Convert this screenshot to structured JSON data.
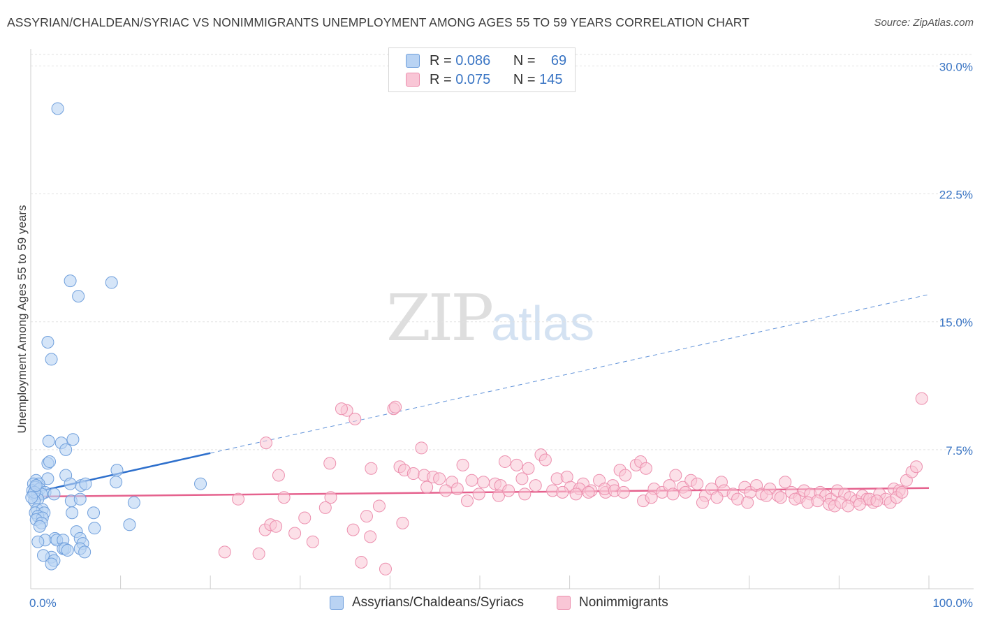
{
  "title": "ASSYRIAN/CHALDEAN/SYRIAC VS NONIMMIGRANTS UNEMPLOYMENT AMONG AGES 55 TO 59 YEARS CORRELATION CHART",
  "source": "Source: ZipAtlas.com",
  "watermark": {
    "zip": "ZIP",
    "atlas": "atlas"
  },
  "legend": {
    "series1": {
      "r_label": "R =",
      "r_value": "0.086",
      "n_label": "N =",
      "n_value": "69"
    },
    "series2": {
      "r_label": "R =",
      "r_value": "0.075",
      "n_label": "N =",
      "n_value": "145"
    }
  },
  "bottom_legend": {
    "series1": "Assyrians/Chaldeans/Syriacs",
    "series2": "Nonimmigrants"
  },
  "colors": {
    "series1_fill": "#b9d3f3",
    "series1_stroke": "#6f9fdc",
    "series1_line": "#2d6fcc",
    "series2_fill": "#f9c6d6",
    "series2_stroke": "#ec8fae",
    "series2_line": "#e5628e",
    "tick_label": "#3a75c4",
    "grid": "#e2e2e2"
  },
  "chart_data": {
    "type": "scatter",
    "ylabel": "Unemployment Among Ages 55 to 59 years",
    "xlabel": "",
    "xlim": [
      0,
      100
    ],
    "ylim": [
      0,
      31
    ],
    "x_tick_labels": [
      {
        "v": 0,
        "label": "0.0%"
      },
      {
        "v": 100,
        "label": "100.0%"
      }
    ],
    "y_ticks": [
      {
        "v": 7.5,
        "label": "7.5%"
      },
      {
        "v": 15,
        "label": "15.0%"
      },
      {
        "v": 22.5,
        "label": "22.5%"
      },
      {
        "v": 30,
        "label": "30.0%"
      }
    ],
    "x_minor_ticks": [
      10,
      20,
      30,
      40,
      50,
      60,
      70,
      80,
      90,
      100
    ],
    "series": [
      {
        "name": "Assyrians/Chaldeans/Syriacs",
        "trend": {
          "x0": 0,
          "y0": 4.95,
          "x1": 20,
          "y1": 7.3,
          "dash_x1": 100,
          "dash_y1": 16.6
        },
        "points": [
          [
            3.0,
            27.5
          ],
          [
            4.4,
            17.4
          ],
          [
            5.3,
            16.5
          ],
          [
            9.0,
            17.3
          ],
          [
            1.9,
            13.8
          ],
          [
            2.3,
            12.8
          ],
          [
            2.0,
            8.0
          ],
          [
            3.4,
            7.9
          ],
          [
            4.7,
            8.1
          ],
          [
            3.9,
            7.5
          ],
          [
            1.9,
            6.7
          ],
          [
            2.1,
            6.8
          ],
          [
            3.9,
            6.0
          ],
          [
            1.9,
            5.8
          ],
          [
            0.6,
            5.7
          ],
          [
            0.9,
            5.5
          ],
          [
            0.3,
            5.5
          ],
          [
            0.5,
            5.3
          ],
          [
            0.2,
            5.1
          ],
          [
            1.0,
            5.2
          ],
          [
            1.6,
            5.0
          ],
          [
            0.3,
            4.9
          ],
          [
            0.7,
            4.8
          ],
          [
            1.2,
            4.9
          ],
          [
            2.6,
            4.9
          ],
          [
            0.8,
            4.6
          ],
          [
            0.4,
            4.5
          ],
          [
            5.6,
            5.4
          ],
          [
            6.1,
            5.5
          ],
          [
            4.4,
            5.5
          ],
          [
            9.5,
            5.6
          ],
          [
            9.6,
            6.3
          ],
          [
            18.9,
            5.5
          ],
          [
            4.5,
            4.5
          ],
          [
            5.5,
            4.6
          ],
          [
            11.5,
            4.4
          ],
          [
            0.7,
            4.0
          ],
          [
            1.3,
            4.0
          ],
          [
            0.5,
            3.8
          ],
          [
            1.5,
            3.8
          ],
          [
            0.8,
            3.6
          ],
          [
            1.3,
            3.5
          ],
          [
            0.6,
            3.4
          ],
          [
            4.6,
            3.8
          ],
          [
            7.0,
            3.8
          ],
          [
            11.0,
            3.1
          ],
          [
            1.2,
            3.2
          ],
          [
            1.0,
            3.0
          ],
          [
            7.1,
            2.9
          ],
          [
            5.1,
            2.7
          ],
          [
            2.7,
            2.3
          ],
          [
            2.9,
            2.2
          ],
          [
            3.6,
            2.2
          ],
          [
            5.5,
            2.3
          ],
          [
            1.6,
            2.2
          ],
          [
            0.8,
            2.1
          ],
          [
            5.8,
            2.0
          ],
          [
            5.5,
            1.7
          ],
          [
            3.6,
            1.7
          ],
          [
            3.8,
            1.7
          ],
          [
            6.0,
            1.5
          ],
          [
            4.1,
            1.6
          ],
          [
            2.3,
            1.2
          ],
          [
            1.4,
            1.3
          ],
          [
            2.6,
            1.0
          ],
          [
            2.3,
            0.8
          ],
          [
            0.4,
            5.0
          ],
          [
            0.1,
            4.7
          ],
          [
            0.6,
            5.4
          ]
        ]
      },
      {
        "name": "Nonimmigrants",
        "trend": {
          "x0": 0,
          "y0": 4.75,
          "x1": 100,
          "y1": 5.25
        },
        "points": [
          [
            35.2,
            9.8
          ],
          [
            40.4,
            9.9
          ],
          [
            36.1,
            9.3
          ],
          [
            26.2,
            7.9
          ],
          [
            43.5,
            7.6
          ],
          [
            27.6,
            6.0
          ],
          [
            33.3,
            6.7
          ],
          [
            37.9,
            6.4
          ],
          [
            41.1,
            6.5
          ],
          [
            41.6,
            6.3
          ],
          [
            42.6,
            6.1
          ],
          [
            43.8,
            6.0
          ],
          [
            44.8,
            5.9
          ],
          [
            45.5,
            5.8
          ],
          [
            46.9,
            5.6
          ],
          [
            48.1,
            6.6
          ],
          [
            49.1,
            5.7
          ],
          [
            50.4,
            5.6
          ],
          [
            51.7,
            5.5
          ],
          [
            52.3,
            5.4
          ],
          [
            52.8,
            6.8
          ],
          [
            54.1,
            6.6
          ],
          [
            54.7,
            5.8
          ],
          [
            55.4,
            6.4
          ],
          [
            56.8,
            7.2
          ],
          [
            57.3,
            6.9
          ],
          [
            58.6,
            5.8
          ],
          [
            59.7,
            5.9
          ],
          [
            60.1,
            5.3
          ],
          [
            61.5,
            5.5
          ],
          [
            61.1,
            5.2
          ],
          [
            62.4,
            5.1
          ],
          [
            63.3,
            5.7
          ],
          [
            64.0,
            5.0
          ],
          [
            64.8,
            5.4
          ],
          [
            65.6,
            6.3
          ],
          [
            66.2,
            6.0
          ],
          [
            67.4,
            6.6
          ],
          [
            67.9,
            6.8
          ],
          [
            68.5,
            6.4
          ],
          [
            69.4,
            5.2
          ],
          [
            70.3,
            5.0
          ],
          [
            71.1,
            5.4
          ],
          [
            71.8,
            6.0
          ],
          [
            72.6,
            5.3
          ],
          [
            73.5,
            5.7
          ],
          [
            74.2,
            5.5
          ],
          [
            75.1,
            4.8
          ],
          [
            75.8,
            5.2
          ],
          [
            76.9,
            5.6
          ],
          [
            77.2,
            5.1
          ],
          [
            78.2,
            4.9
          ],
          [
            79.5,
            5.3
          ],
          [
            80.1,
            5.0
          ],
          [
            80.8,
            5.4
          ],
          [
            81.4,
            4.9
          ],
          [
            82.3,
            5.2
          ],
          [
            83.2,
            4.8
          ],
          [
            84.0,
            5.6
          ],
          [
            84.7,
            5.0
          ],
          [
            85.6,
            4.7
          ],
          [
            86.1,
            5.1
          ],
          [
            86.8,
            4.9
          ],
          [
            87.9,
            5.0
          ],
          [
            88.5,
            4.8
          ],
          [
            89.1,
            4.6
          ],
          [
            89.8,
            5.1
          ],
          [
            90.6,
            4.9
          ],
          [
            91.2,
            4.7
          ],
          [
            91.9,
            4.5
          ],
          [
            92.6,
            4.8
          ],
          [
            93.1,
            4.6
          ],
          [
            93.8,
            4.4
          ],
          [
            94.5,
            4.9
          ],
          [
            95.2,
            4.6
          ],
          [
            96.1,
            5.2
          ],
          [
            96.7,
            5.1
          ],
          [
            97.5,
            5.7
          ],
          [
            98.1,
            6.2
          ],
          [
            98.6,
            6.5
          ],
          [
            99.2,
            10.5
          ],
          [
            34.6,
            9.9
          ],
          [
            40.6,
            10.0
          ],
          [
            44.1,
            5.3
          ],
          [
            46.2,
            5.1
          ],
          [
            47.5,
            5.2
          ],
          [
            48.6,
            4.5
          ],
          [
            49.9,
            4.9
          ],
          [
            52.1,
            4.8
          ],
          [
            53.2,
            5.1
          ],
          [
            55.0,
            4.9
          ],
          [
            56.2,
            5.4
          ],
          [
            58.1,
            5.1
          ],
          [
            59.2,
            5.0
          ],
          [
            60.7,
            4.9
          ],
          [
            62.1,
            5.0
          ],
          [
            63.9,
            5.2
          ],
          [
            65.0,
            5.1
          ],
          [
            66.0,
            5.0
          ],
          [
            68.2,
            4.5
          ],
          [
            69.1,
            4.7
          ],
          [
            71.5,
            4.9
          ],
          [
            72.9,
            5.0
          ],
          [
            74.8,
            4.4
          ],
          [
            76.4,
            4.7
          ],
          [
            78.7,
            4.6
          ],
          [
            79.8,
            4.4
          ],
          [
            81.9,
            4.8
          ],
          [
            83.5,
            4.7
          ],
          [
            85.1,
            4.6
          ],
          [
            86.5,
            4.4
          ],
          [
            87.6,
            4.5
          ],
          [
            88.9,
            4.3
          ],
          [
            89.5,
            4.2
          ],
          [
            90.2,
            4.4
          ],
          [
            91.0,
            4.2
          ],
          [
            92.3,
            4.3
          ],
          [
            93.4,
            4.6
          ],
          [
            94.2,
            4.5
          ],
          [
            95.7,
            4.4
          ],
          [
            96.4,
            4.7
          ],
          [
            97.0,
            5.0
          ],
          [
            23.1,
            4.6
          ],
          [
            28.2,
            4.7
          ],
          [
            33.4,
            4.7
          ],
          [
            21.6,
            1.5
          ],
          [
            25.4,
            1.4
          ],
          [
            26.1,
            2.8
          ],
          [
            26.7,
            3.1
          ],
          [
            27.3,
            3.0
          ],
          [
            29.4,
            2.6
          ],
          [
            30.5,
            3.5
          ],
          [
            31.4,
            2.1
          ],
          [
            32.8,
            4.1
          ],
          [
            35.9,
            2.8
          ],
          [
            37.4,
            3.6
          ],
          [
            37.8,
            2.4
          ],
          [
            38.8,
            4.2
          ],
          [
            41.4,
            3.2
          ],
          [
            36.8,
            0.9
          ],
          [
            39.5,
            0.5
          ]
        ]
      }
    ]
  }
}
